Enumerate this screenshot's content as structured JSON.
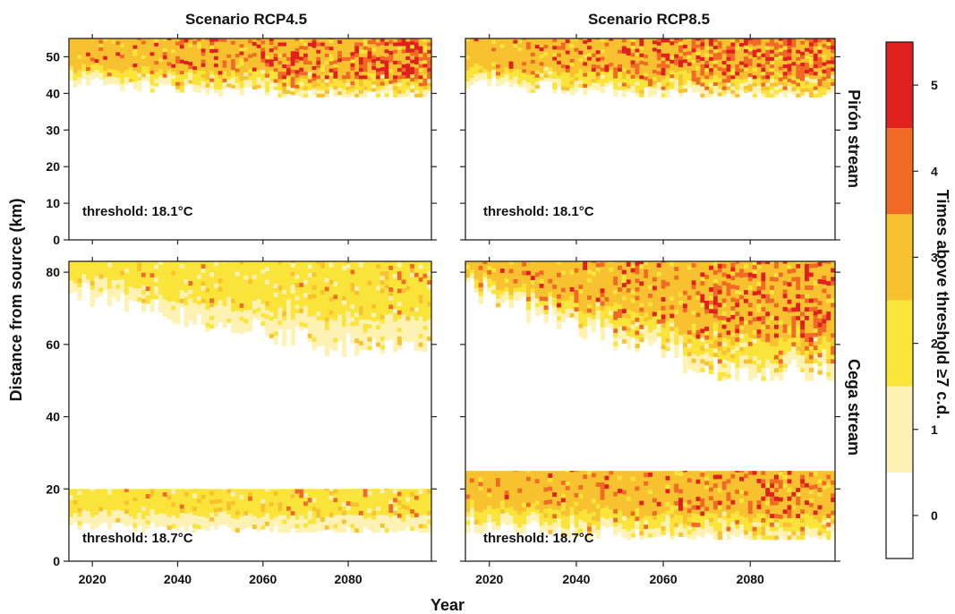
{
  "chart_data": {
    "type": "heatmap",
    "xlabel": "Year",
    "ylabel": "Distance from source (km)",
    "x_range": [
      2015,
      2099
    ],
    "x_ticks": [
      "2020",
      "2040",
      "2060",
      "2080"
    ],
    "columns": [
      {
        "title": "Scenario RCP4.5"
      },
      {
        "title": "Scenario RCP8.5"
      }
    ],
    "rows": [
      {
        "label": "Pirón stream",
        "y_range": [
          0,
          55
        ],
        "y_ticks": [
          "0",
          "10",
          "20",
          "30",
          "40",
          "50"
        ]
      },
      {
        "label": "Cega stream",
        "y_range": [
          0,
          83
        ],
        "y_ticks": [
          "0",
          "20",
          "40",
          "60",
          "80"
        ]
      }
    ],
    "colorbar": {
      "title": "Times above threshold ≥7 c.d.",
      "levels": [
        0,
        1,
        2,
        3,
        4,
        5
      ],
      "tick_labels": [
        "0",
        "1",
        "2",
        "3",
        "4",
        "5"
      ],
      "colors": [
        "#ffffff",
        "#fdf2b3",
        "#fbe43a",
        "#f8c12f",
        "#f06a26",
        "#e01f1f"
      ]
    },
    "panels": [
      {
        "row": 0,
        "col": 0,
        "threshold": "threshold: 18.1°C",
        "bands": [
          {
            "bottom": 39,
            "top": 55,
            "start_year": 2015,
            "end_year": 2099,
            "bottom_start": 43,
            "bottom_mid": 39,
            "level": 3,
            "hot": 0.25
          }
        ]
      },
      {
        "row": 0,
        "col": 1,
        "threshold": "threshold: 18.1°C",
        "bands": [
          {
            "bottom": 39,
            "top": 55,
            "start_year": 2015,
            "end_year": 2099,
            "bottom_start": 43,
            "bottom_mid": 39,
            "level": 3,
            "hot": 0.3
          }
        ]
      },
      {
        "row": 1,
        "col": 0,
        "threshold": "threshold: 18.7°C",
        "bands": [
          {
            "bottom": 55,
            "top": 83,
            "start_year": 2015,
            "end_year": 2099,
            "bottom_start": 75,
            "bottom_mid": 60,
            "level": 2,
            "hot": 0.05
          },
          {
            "bottom": 8,
            "top": 20,
            "start_year": 2015,
            "end_year": 2099,
            "bottom_start": 10,
            "bottom_mid": 8,
            "level": 2,
            "hot": 0.08
          }
        ]
      },
      {
        "row": 1,
        "col": 1,
        "threshold": "threshold: 18.7°C",
        "bands": [
          {
            "bottom": 50,
            "top": 83,
            "start_year": 2015,
            "end_year": 2099,
            "bottom_start": 75,
            "bottom_mid": 52,
            "level": 3,
            "hot": 0.15
          },
          {
            "bottom": 6,
            "top": 25,
            "start_year": 2015,
            "end_year": 2099,
            "bottom_start": 10,
            "bottom_mid": 6,
            "level": 3,
            "hot": 0.15
          }
        ]
      }
    ]
  }
}
